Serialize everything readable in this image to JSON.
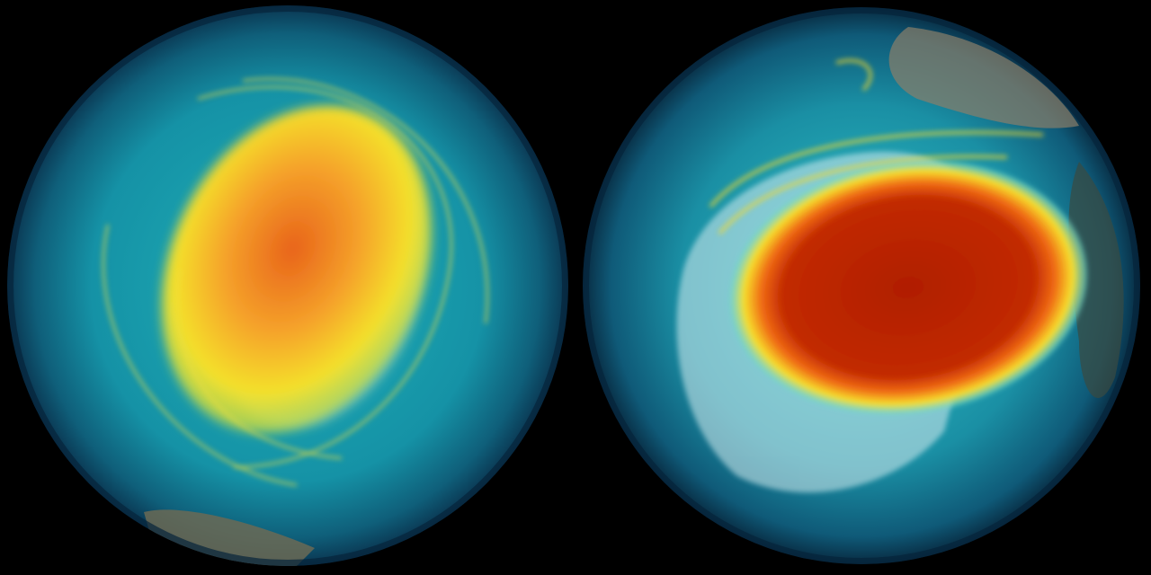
{
  "background_color": "#000000",
  "globes": [
    {
      "palette": {
        "ocean": "#0f4f6a",
        "low": "#1aa6b0",
        "mid": "#f2e22a",
        "high": "#f07a1a",
        "peak": "#e85a12"
      }
    },
    {
      "palette": {
        "ocean": "#0f4f6a",
        "low": "#1aa6b0",
        "ice": "#cfe6ea",
        "mid": "#f2e22a",
        "high": "#f07a1a",
        "peak": "#b52000"
      }
    }
  ]
}
